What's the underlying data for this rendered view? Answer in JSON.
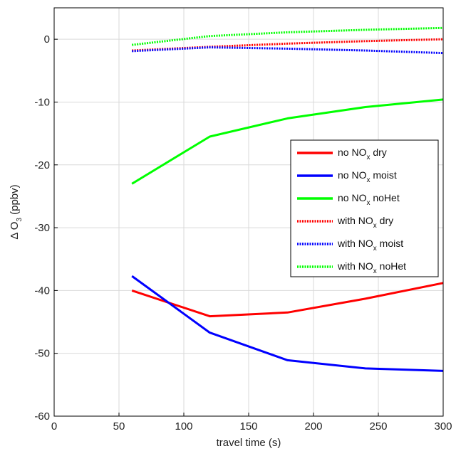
{
  "chart_data": {
    "type": "line",
    "title": "",
    "xlabel": "travel time (s)",
    "ylabel": {
      "base": "Δ O",
      "sub": "3",
      "rest": " (ppbv)"
    },
    "xlim": [
      0,
      300
    ],
    "ylim": [
      -60,
      5
    ],
    "xticks": [
      0,
      50,
      100,
      150,
      200,
      250,
      300
    ],
    "yticks": [
      -60,
      -50,
      -40,
      -30,
      -20,
      -10,
      0
    ],
    "grid": true,
    "legend_position": "center-right",
    "x": [
      60,
      120,
      180,
      240,
      300
    ],
    "series": [
      {
        "name": {
          "pre": "no NO",
          "sub": "x",
          "post": " dry"
        },
        "color": "#ff0000",
        "style": "solid",
        "values": [
          -40.0,
          -44.1,
          -43.5,
          -41.3,
          -38.8
        ]
      },
      {
        "name": {
          "pre": "no NO",
          "sub": "x",
          "post": " moist"
        },
        "color": "#0000ff",
        "style": "solid",
        "values": [
          -37.7,
          -46.7,
          -51.1,
          -52.4,
          -52.8
        ]
      },
      {
        "name": {
          "pre": "no NO",
          "sub": "x",
          "post": " noHet"
        },
        "color": "#00ff00",
        "style": "solid",
        "values": [
          -23.0,
          -15.5,
          -12.6,
          -10.8,
          -9.6
        ]
      },
      {
        "name": {
          "pre": "with NO",
          "sub": "x",
          "post": " dry"
        },
        "color": "#ff0000",
        "style": "dotted",
        "values": [
          -1.8,
          -1.2,
          -0.7,
          -0.3,
          0.0
        ]
      },
      {
        "name": {
          "pre": "with NO",
          "sub": "x",
          "post": " moist"
        },
        "color": "#0000ff",
        "style": "dotted",
        "values": [
          -1.9,
          -1.3,
          -1.5,
          -1.8,
          -2.2
        ]
      },
      {
        "name": {
          "pre": "with NO",
          "sub": "x",
          "post": " noHet"
        },
        "color": "#00ff00",
        "style": "dotted",
        "values": [
          -0.9,
          0.5,
          1.1,
          1.5,
          1.8
        ]
      }
    ]
  }
}
